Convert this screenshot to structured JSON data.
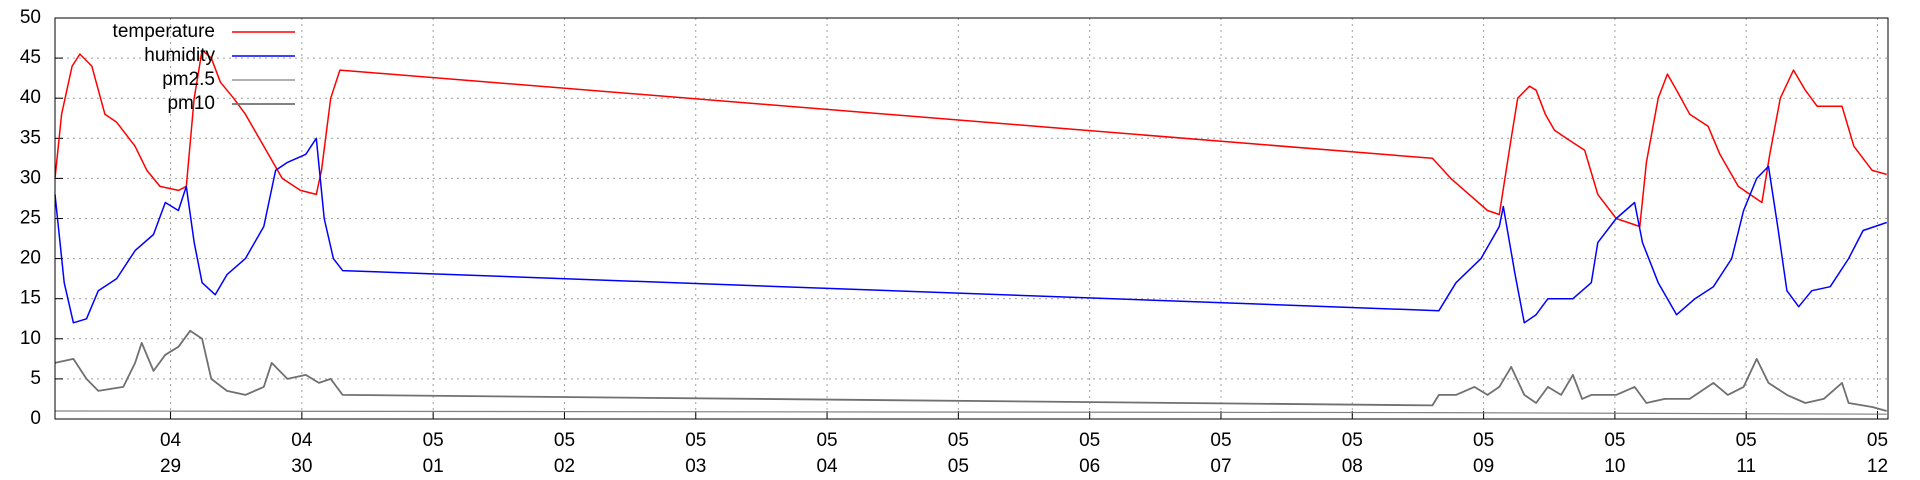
{
  "chart_data": {
    "type": "line",
    "xlim": [
      0.12,
      14.08
    ],
    "xticks": [
      {
        "value": 1,
        "label": "04 29"
      },
      {
        "value": 2,
        "label": "04 30"
      },
      {
        "value": 3,
        "label": "05 01"
      },
      {
        "value": 4,
        "label": "05 02"
      },
      {
        "value": 5,
        "label": "05 03"
      },
      {
        "value": 6,
        "label": "05 04"
      },
      {
        "value": 7,
        "label": "05 05"
      },
      {
        "value": 8,
        "label": "05 06"
      },
      {
        "value": 9,
        "label": "05 07"
      },
      {
        "value": 10,
        "label": "05 08"
      },
      {
        "value": 11,
        "label": "05 09"
      },
      {
        "value": 12,
        "label": "05 10"
      },
      {
        "value": 13,
        "label": "05 11"
      },
      {
        "value": 14,
        "label": "05 12"
      }
    ],
    "ylim": [
      0,
      50
    ],
    "yticks": [
      0,
      5,
      10,
      15,
      20,
      25,
      30,
      35,
      40,
      45,
      50
    ],
    "grid": true,
    "legend": "top-left",
    "series": [
      {
        "name": "temperature",
        "color": "#ff0000",
        "width": 1.5,
        "x": [
          0.12,
          0.17,
          0.25,
          0.31,
          0.4,
          0.5,
          0.59,
          0.73,
          0.82,
          0.92,
          1.06,
          1.12,
          1.18,
          1.24,
          1.31,
          1.38,
          1.48,
          1.57,
          1.71,
          1.85,
          1.99,
          2.11,
          2.15,
          2.22,
          2.29,
          10.61,
          10.75,
          10.89,
          11.03,
          11.12,
          11.21,
          11.26,
          11.35,
          11.4,
          11.47,
          11.54,
          11.63,
          11.77,
          11.87,
          12.01,
          12.19,
          12.24,
          12.33,
          12.4,
          12.47,
          12.57,
          12.71,
          12.8,
          12.94,
          13.12,
          13.18,
          13.26,
          13.36,
          13.45,
          13.54,
          13.73,
          13.82,
          13.96,
          14.07
        ],
        "values": [
          30,
          38,
          44,
          45.5,
          44,
          38,
          37,
          34,
          31,
          29,
          28.5,
          29,
          40,
          46,
          45,
          42,
          40,
          38,
          34,
          30,
          28.5,
          28,
          31,
          40,
          43.5,
          32.5,
          30,
          28,
          26,
          25.5,
          35,
          40,
          41.5,
          41,
          38,
          36,
          35,
          33.5,
          28,
          25,
          24,
          32,
          40,
          43,
          41,
          38,
          36.5,
          33,
          29,
          27,
          33,
          40,
          43.5,
          41,
          39,
          39,
          34,
          31,
          30.5
        ]
      },
      {
        "name": "humidity",
        "color": "#0000ff",
        "width": 1.5,
        "x": [
          0.12,
          0.19,
          0.26,
          0.36,
          0.45,
          0.59,
          0.73,
          0.87,
          0.96,
          1.06,
          1.12,
          1.18,
          1.24,
          1.34,
          1.43,
          1.57,
          1.71,
          1.8,
          1.89,
          2.03,
          2.11,
          2.17,
          2.24,
          2.31,
          10.66,
          10.79,
          10.98,
          11.12,
          11.15,
          11.24,
          11.31,
          11.4,
          11.49,
          11.68,
          11.82,
          11.87,
          12.01,
          12.15,
          12.21,
          12.33,
          12.47,
          12.61,
          12.75,
          12.89,
          12.98,
          13.08,
          13.17,
          13.24,
          13.31,
          13.4,
          13.5,
          13.64,
          13.78,
          13.89,
          14.07
        ],
        "values": [
          28,
          17,
          12,
          12.5,
          16,
          17.5,
          21,
          23,
          27,
          26,
          29,
          22,
          17,
          15.5,
          18,
          20,
          24,
          31,
          32,
          33,
          35,
          25,
          20,
          18.5,
          13.5,
          17,
          20,
          24,
          26.5,
          18,
          12,
          13,
          15,
          15,
          17,
          22,
          25,
          27,
          22,
          17,
          13,
          15,
          16.5,
          20,
          26,
          30,
          31.5,
          24,
          16,
          14,
          16,
          16.5,
          20,
          23.5,
          24.5
        ]
      },
      {
        "name": "pm2.5",
        "color": "#808080",
        "width": 1.2,
        "x": [
          0.12,
          10.61,
          14.07
        ],
        "values": [
          1,
          0.8,
          0.6
        ]
      },
      {
        "name": "pm10",
        "color": "#707070",
        "width": 1.8,
        "x": [
          0.12,
          0.26,
          0.36,
          0.45,
          0.64,
          0.73,
          0.78,
          0.87,
          0.96,
          1.06,
          1.15,
          1.24,
          1.31,
          1.43,
          1.57,
          1.71,
          1.77,
          1.89,
          2.03,
          2.13,
          2.22,
          2.31,
          10.61,
          10.66,
          10.79,
          10.93,
          11.03,
          11.12,
          11.21,
          11.31,
          11.4,
          11.49,
          11.59,
          11.68,
          11.75,
          11.82,
          12.01,
          12.15,
          12.24,
          12.38,
          12.57,
          12.75,
          12.86,
          12.98,
          13.08,
          13.17,
          13.31,
          13.45,
          13.59,
          13.73,
          13.78,
          13.96,
          14.07
        ],
        "values": [
          7,
          7.5,
          5,
          3.5,
          4,
          7,
          9.5,
          6,
          8,
          9,
          11,
          10,
          5,
          3.5,
          3,
          4,
          7,
          5,
          5.5,
          4.5,
          5,
          3,
          1.7,
          3,
          3,
          4,
          3,
          4,
          6.5,
          3,
          2,
          4,
          3,
          5.5,
          2.5,
          3,
          3,
          4,
          2,
          2.5,
          2.5,
          4.5,
          3,
          4,
          7.5,
          4.5,
          3,
          2,
          2.5,
          4.5,
          2,
          1.5,
          1
        ]
      }
    ]
  }
}
